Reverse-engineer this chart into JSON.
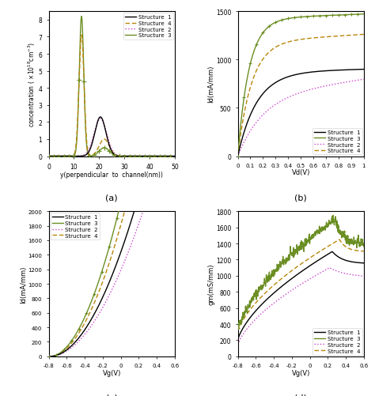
{
  "colors": {
    "s1": "#000000",
    "s2": "#cc44cc",
    "s3": "#6b8e23",
    "s4": "#b8860b"
  },
  "panel_a": {
    "xlabel": "y(perpendicular  to  channel(nm))",
    "xlim": [
      0,
      50
    ],
    "ylim": [
      0,
      8.5
    ],
    "yticks": [
      0,
      1,
      2,
      3,
      4,
      5,
      6,
      7,
      8
    ],
    "xticks": [
      0,
      10,
      20,
      30,
      40,
      50
    ]
  },
  "panel_b": {
    "xlabel": "Vd(V)",
    "ylabel": "Id(mA/mm)",
    "xlim": [
      0,
      1.0
    ],
    "ylim": [
      0,
      1500
    ],
    "yticks": [
      0,
      500,
      1000,
      1500
    ],
    "xticks": [
      0,
      0.1,
      0.2,
      0.3,
      0.4,
      0.5,
      0.6,
      0.7,
      0.8,
      0.9,
      1.0
    ]
  },
  "panel_c": {
    "xlabel": "Vg(V)",
    "ylabel": "Id(mA/mm)",
    "xlim": [
      -0.8,
      0.6
    ],
    "ylim": [
      0,
      2000
    ],
    "yticks": [
      0,
      200,
      400,
      600,
      800,
      1000,
      1200,
      1400,
      1600,
      1800,
      2000
    ],
    "xticks": [
      -0.8,
      -0.6,
      -0.4,
      -0.2,
      0,
      0.2,
      0.4,
      0.6
    ]
  },
  "panel_d": {
    "xlabel": "Vg(V)",
    "ylabel": "gm(mS/mm)",
    "xlim": [
      -0.8,
      0.6
    ],
    "ylim": [
      0,
      1800
    ],
    "yticks": [
      0,
      200,
      400,
      600,
      800,
      1000,
      1200,
      1400,
      1600,
      1800
    ],
    "xticks": [
      -0.8,
      -0.6,
      -0.4,
      -0.2,
      0,
      0.2,
      0.4,
      0.6
    ]
  }
}
